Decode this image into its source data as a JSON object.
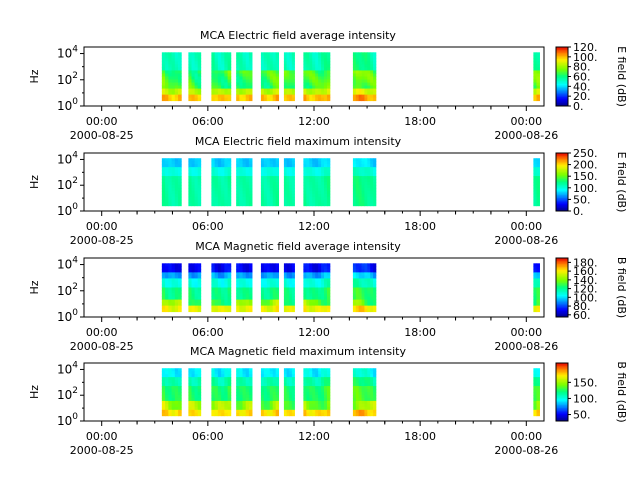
{
  "chart_data": [
    {
      "type": "heatmap",
      "title": "MCA  Electric field average intensity",
      "ylabel": "Hz",
      "yticks": [
        "10^0",
        "10^2",
        "10^4"
      ],
      "xticks": [
        "00:00",
        "06:00",
        "12:00",
        "18:00",
        "00:00"
      ],
      "xdates": [
        "2000-08-25",
        "",
        "",
        "",
        "2000-08-26"
      ],
      "xlim_hours": [
        -1,
        25
      ],
      "colorbar": {
        "label": "E field (dB)",
        "ticks": [
          "0.",
          "20.",
          "40.",
          "60.",
          "80.",
          "100.",
          "120."
        ],
        "range": [
          0,
          120
        ]
      },
      "segments_hours": [
        [
          3.4,
          4.5
        ],
        [
          4.9,
          5.6
        ],
        [
          6.2,
          7.3
        ],
        [
          7.6,
          8.5
        ],
        [
          9.0,
          10.0
        ],
        [
          10.3,
          10.9
        ],
        [
          11.4,
          12.9
        ],
        [
          14.2,
          15.5
        ],
        [
          24.4,
          24.75
        ]
      ],
      "profile": "e_avg"
    },
    {
      "type": "heatmap",
      "title": "MCA  Electric field maximum intensity",
      "ylabel": "Hz",
      "yticks": [
        "10^0",
        "10^2",
        "10^4"
      ],
      "xticks": [
        "00:00",
        "06:00",
        "12:00",
        "18:00",
        "00:00"
      ],
      "xdates": [
        "2000-08-25",
        "",
        "",
        "",
        "2000-08-26"
      ],
      "xlim_hours": [
        -1,
        25
      ],
      "colorbar": {
        "label": "E field (dB)",
        "ticks": [
          "0.",
          "50.",
          "100.",
          "150.",
          "200.",
          "250."
        ],
        "range": [
          0,
          250
        ]
      },
      "segments_hours": [
        [
          3.4,
          4.5
        ],
        [
          4.9,
          5.6
        ],
        [
          6.2,
          7.3
        ],
        [
          7.6,
          8.5
        ],
        [
          9.0,
          10.0
        ],
        [
          10.3,
          10.9
        ],
        [
          11.4,
          12.9
        ],
        [
          14.2,
          15.5
        ],
        [
          24.4,
          24.75
        ]
      ],
      "profile": "e_max"
    },
    {
      "type": "heatmap",
      "title": "MCA  Magnetic field average intensity",
      "ylabel": "Hz",
      "yticks": [
        "10^0",
        "10^2",
        "10^4"
      ],
      "xticks": [
        "00:00",
        "06:00",
        "12:00",
        "18:00",
        "00:00"
      ],
      "xdates": [
        "2000-08-25",
        "",
        "",
        "",
        "2000-08-26"
      ],
      "xlim_hours": [
        -1,
        25
      ],
      "colorbar": {
        "label": "B field (dB)",
        "ticks": [
          "60.",
          "80.",
          "100.",
          "120.",
          "140.",
          "160.",
          "180."
        ],
        "range": [
          55,
          190
        ]
      },
      "segments_hours": [
        [
          3.4,
          4.5
        ],
        [
          4.9,
          5.6
        ],
        [
          6.2,
          7.3
        ],
        [
          7.6,
          8.5
        ],
        [
          9.0,
          10.0
        ],
        [
          10.3,
          10.9
        ],
        [
          11.4,
          12.9
        ],
        [
          14.2,
          15.5
        ],
        [
          24.4,
          24.75
        ]
      ],
      "profile": "b_avg"
    },
    {
      "type": "heatmap",
      "title": "MCA  Magnetic field maximum intensity",
      "ylabel": "Hz",
      "yticks": [
        "10^0",
        "10^2",
        "10^4"
      ],
      "xticks": [
        "00:00",
        "06:00",
        "12:00",
        "18:00",
        "00:00"
      ],
      "xdates": [
        "2000-08-25",
        "",
        "",
        "",
        "2000-08-26"
      ],
      "xlim_hours": [
        -1,
        25
      ],
      "colorbar": {
        "label": "B field (dB)",
        "ticks": [
          "50.",
          "100.",
          "150."
        ],
        "range": [
          30,
          210
        ]
      },
      "segments_hours": [
        [
          3.4,
          4.5
        ],
        [
          4.9,
          5.6
        ],
        [
          6.2,
          7.3
        ],
        [
          7.6,
          8.5
        ],
        [
          9.0,
          10.0
        ],
        [
          10.3,
          10.9
        ],
        [
          11.4,
          12.9
        ],
        [
          14.2,
          15.5
        ],
        [
          24.4,
          24.75
        ]
      ],
      "profile": "b_max"
    }
  ]
}
